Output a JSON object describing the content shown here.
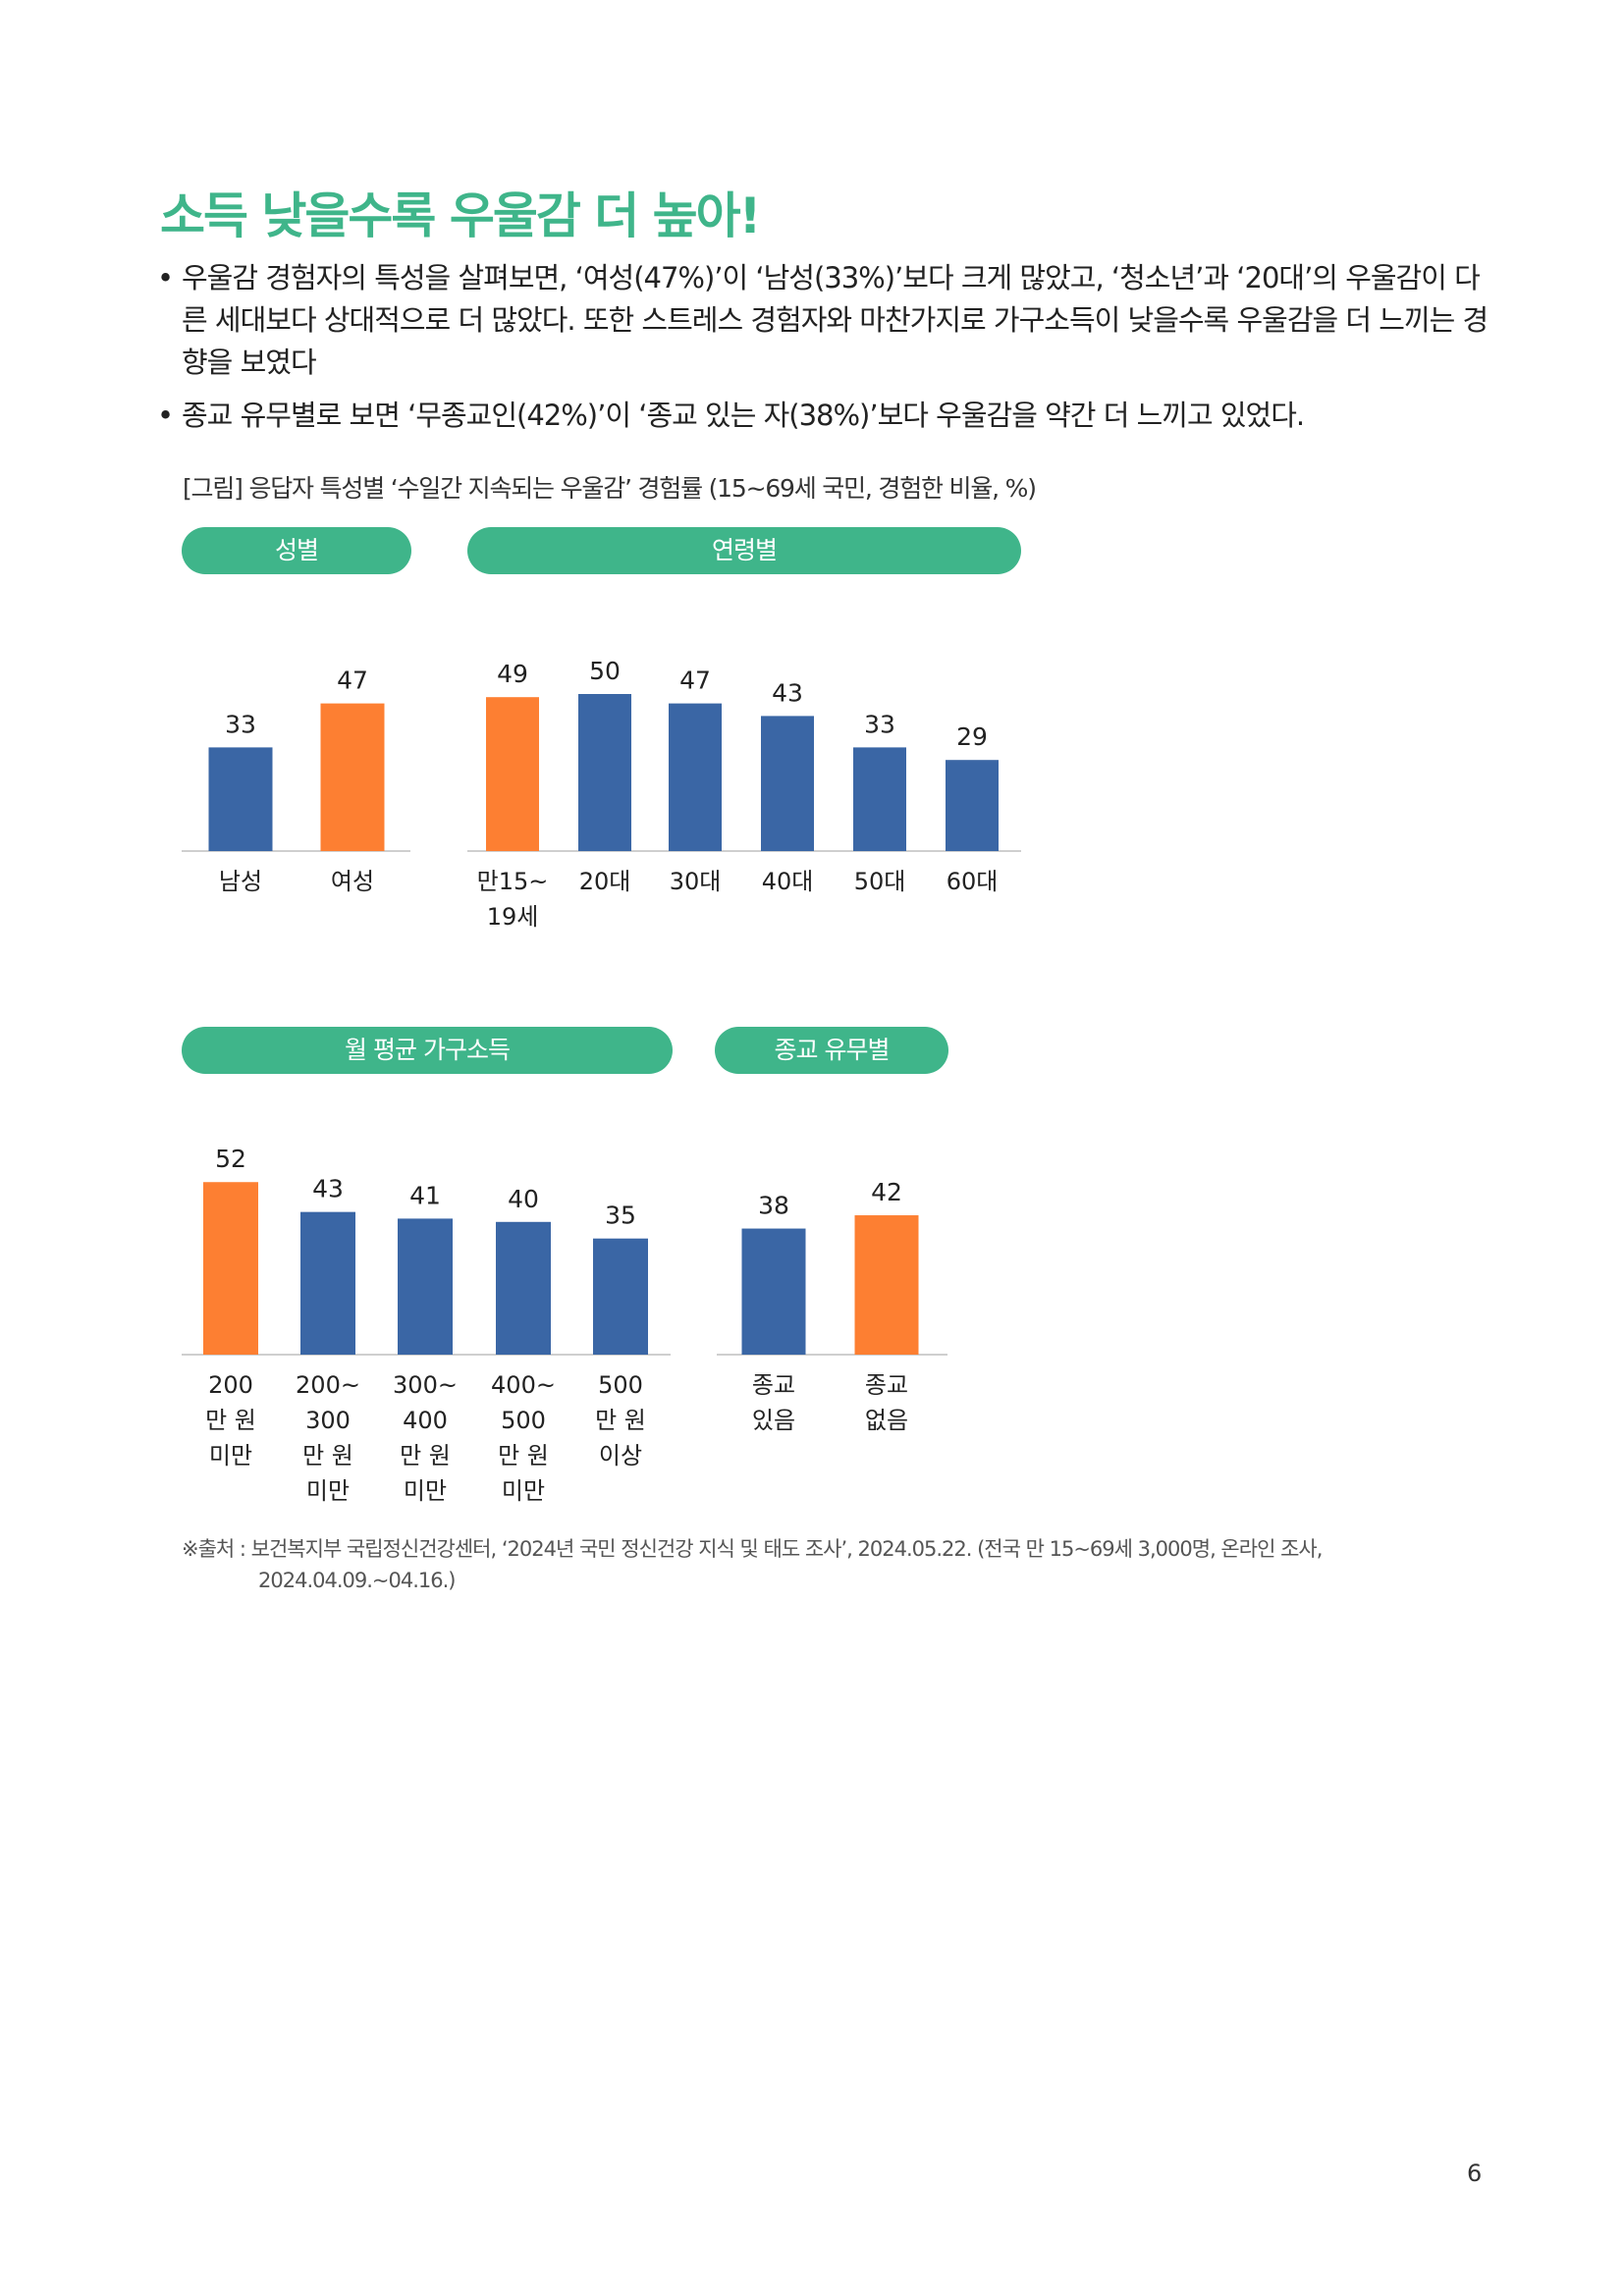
{
  "heading": "소득 낮을수록 우울감 더 높아!",
  "bullets": [
    "우울감 경험자의 특성을 살펴보면, ‘여성(47%)’이 ‘남성(33%)’보다 크게 많았고, ‘청소년’과 ‘20대’의 우울감이 다른 세대보다 상대적으로 더 많았다. 또한 스트레스 경험자와 마찬가지로 가구소득이 낮을수록 우울감을 더 느끼는 경향을 보였다",
    "종교 유무별로 보면 ‘무종교인(42%)’이 ‘종교 있는 자(38%)’보다 우울감을 약간 더 느끼고 있었다."
  ],
  "figure_caption": "[그림] 응답자 특성별 ‘수일간 지속되는 우울감’ 경험률 (15~69세 국민, 경험한 비율, %)",
  "colors": {
    "highlight": "#fd7f32",
    "normal": "#3a66a5",
    "pill": "#3fb58a",
    "heading": "#3fb58a"
  },
  "chart_data": [
    {
      "type": "bar",
      "title": "성별",
      "categories": [
        "남성",
        "여성"
      ],
      "values": [
        33,
        47
      ],
      "highlight_index": 1
    },
    {
      "type": "bar",
      "title": "연령별",
      "categories": [
        "만15~\n19세",
        "20대",
        "30대",
        "40대",
        "50대",
        "60대"
      ],
      "values": [
        49,
        50,
        47,
        43,
        33,
        29
      ],
      "highlight_index": 0
    },
    {
      "type": "bar",
      "title": "월 평균 가구소득",
      "categories": [
        "200\n만 원\n미만",
        "200~\n300\n만 원\n미만",
        "300~\n400\n만 원\n미만",
        "400~\n500\n만 원\n미만",
        "500\n만 원\n이상"
      ],
      "values": [
        52,
        43,
        41,
        40,
        35
      ],
      "highlight_index": 0
    },
    {
      "type": "bar",
      "title": "종교 유무별",
      "categories": [
        "종교\n있음",
        "종교\n없음"
      ],
      "values": [
        38,
        42
      ],
      "highlight_index": 1
    }
  ],
  "source": {
    "line1": "※출처 : 보건복지부 국립정신건강센터, ‘2024년 국민 정신건강 지식 및 태도 조사’, 2024.05.22. (전국 만 15~69세 3,000명, 온라인 조사,",
    "line2": "2024.04.09.~04.16.)"
  },
  "page_number": "6"
}
